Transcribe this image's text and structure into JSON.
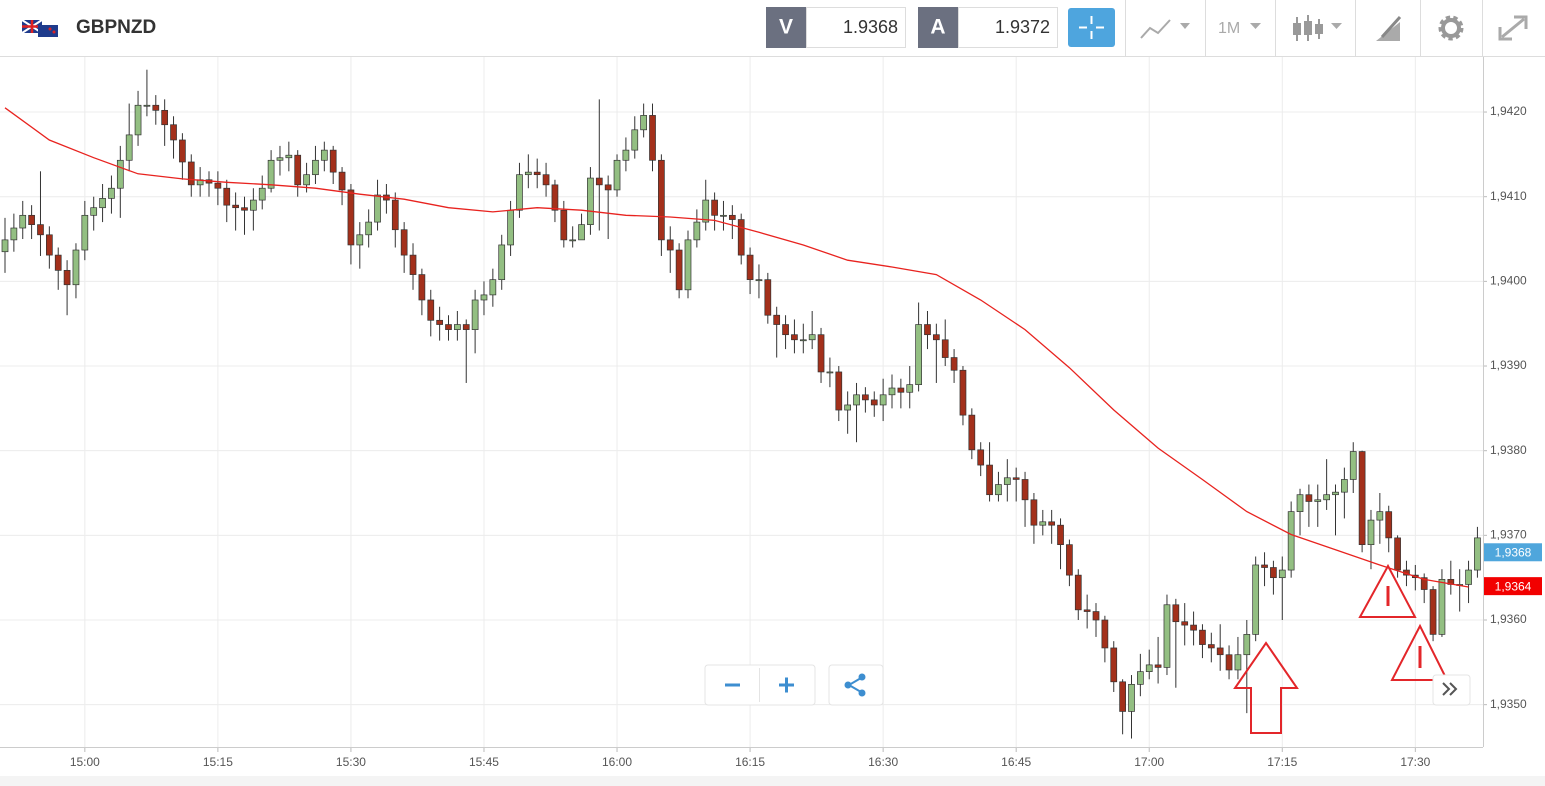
{
  "toolbar": {
    "symbol": "GBPNZD",
    "bid_label": "V",
    "bid": 1.9368,
    "ask_label": "A",
    "ask": 1.9372,
    "timeframe": "1M"
  },
  "chart_data": {
    "type": "candlestick",
    "x": [
      "14:51",
      "14:52",
      "14:53",
      "14:54",
      "14:55",
      "14:56",
      "14:57",
      "14:58",
      "14:59",
      "15:00",
      "15:01",
      "15:02",
      "15:03",
      "15:04",
      "15:05",
      "15:06",
      "15:07",
      "15:08",
      "15:09",
      "15:10",
      "15:11",
      "15:12",
      "15:13",
      "15:14",
      "15:15",
      "15:16",
      "15:17",
      "15:18",
      "15:19",
      "15:20",
      "15:21",
      "15:22",
      "15:23",
      "15:24",
      "15:25",
      "15:26",
      "15:27",
      "15:28",
      "15:29",
      "15:30",
      "15:31",
      "15:32",
      "15:33",
      "15:34",
      "15:35",
      "15:36",
      "15:37",
      "15:38",
      "15:39",
      "15:40",
      "15:41",
      "15:42",
      "15:43",
      "15:44",
      "15:45",
      "15:46",
      "15:47",
      "15:48",
      "15:49",
      "15:50",
      "15:51",
      "15:52",
      "15:53",
      "15:54",
      "15:55",
      "15:56",
      "15:57",
      "15:58",
      "15:59",
      "16:00",
      "16:01",
      "16:02",
      "16:03",
      "16:04",
      "16:05",
      "16:06",
      "16:07",
      "16:08",
      "16:09",
      "16:10",
      "16:11",
      "16:12",
      "16:13",
      "16:14",
      "16:15",
      "16:16",
      "16:17",
      "16:18",
      "16:19",
      "16:20",
      "16:21",
      "16:22",
      "16:23",
      "16:24",
      "16:25",
      "16:26",
      "16:27",
      "16:28",
      "16:29",
      "16:30",
      "16:31",
      "16:32",
      "16:33",
      "16:34",
      "16:35",
      "16:36",
      "16:37",
      "16:38",
      "16:39",
      "16:40",
      "16:41",
      "16:42",
      "16:43",
      "16:44",
      "16:45",
      "16:46",
      "16:47",
      "16:48",
      "16:49",
      "16:50",
      "16:51",
      "16:52",
      "16:53",
      "16:54",
      "16:55",
      "16:56",
      "16:57",
      "16:58",
      "16:59",
      "17:00",
      "17:01",
      "17:02",
      "17:03",
      "17:04",
      "17:05",
      "17:06",
      "17:07",
      "17:08",
      "17:09",
      "17:10",
      "17:11",
      "17:12",
      "17:13",
      "17:14",
      "17:15",
      "17:16",
      "17:17",
      "17:18",
      "17:19",
      "17:20",
      "17:21",
      "17:22",
      "17:23",
      "17:24",
      "17:25",
      "17:26",
      "17:27",
      "17:28",
      "17:29",
      "17:30",
      "17:31",
      "17:32",
      "17:33",
      "17:34",
      "17:35",
      "17:36",
      "17:37"
    ],
    "open": [
      1.94035,
      1.94049,
      1.94063,
      1.94078,
      1.94067,
      1.94055,
      1.94031,
      1.94013,
      1.93996,
      1.94037,
      1.94078,
      1.94087,
      1.94098,
      1.9411,
      1.94143,
      1.94173,
      1.94208,
      1.94208,
      1.94202,
      1.94185,
      1.94167,
      1.94141,
      1.94114,
      1.9412,
      1.94116,
      1.9411,
      1.9409,
      1.94087,
      1.94084,
      1.94096,
      1.9411,
      1.94143,
      1.94146,
      1.94149,
      1.94114,
      1.94126,
      1.94143,
      1.94155,
      1.94129,
      1.94108,
      1.94043,
      1.94055,
      1.9407,
      1.94102,
      1.94096,
      1.94061,
      1.94031,
      1.94008,
      1.93978,
      1.93954,
      1.93949,
      1.93943,
      1.93949,
      1.93943,
      1.93978,
      1.93984,
      1.94002,
      1.94043,
      1.94084,
      1.94126,
      1.94129,
      1.94126,
      1.94114,
      1.94084,
      1.94049,
      1.94049,
      1.94067,
      1.94122,
      1.94114,
      1.94108,
      1.94143,
      1.94155,
      1.94179,
      1.94196,
      1.94143,
      1.94049,
      1.94037,
      1.9399,
      1.94049,
      1.9407,
      1.94096,
      1.94078,
      1.94078,
      1.94073,
      1.94031,
      1.94002,
      1.94002,
      1.9396,
      1.93949,
      1.93937,
      1.93931,
      1.93931,
      1.93937,
      1.93893,
      1.93893,
      1.93848,
      1.93854,
      1.93866,
      1.9386,
      1.93854,
      1.93866,
      1.93874,
      1.93869,
      1.93878,
      1.93949,
      1.93937,
      1.93931,
      1.9391,
      1.93895,
      1.93842,
      1.93801,
      1.93783,
      1.93748,
      1.9376,
      1.93768,
      1.93766,
      1.93742,
      1.93712,
      1.93716,
      1.93712,
      1.93689,
      1.93653,
      1.93612,
      1.9361,
      1.936,
      1.93567,
      1.93527,
      1.93492,
      1.93524,
      1.93539,
      1.93547,
      1.93544,
      1.93618,
      1.93598,
      1.93594,
      1.93588,
      1.93571,
      1.93567,
      1.93559,
      1.93541,
      1.93559,
      1.93583,
      1.93665,
      1.93662,
      1.9365,
      1.93659,
      1.93728,
      1.93748,
      1.9374,
      1.93742,
      1.93748,
      1.93751,
      1.93766,
      1.93799,
      1.93689,
      1.93718,
      1.93728,
      1.93697,
      1.93659,
      1.93653,
      1.9365,
      1.93636,
      1.93583,
      1.93648,
      1.93642,
      1.93642,
      1.93659
    ],
    "high": [
      1.94075,
      1.9408,
      1.94095,
      1.9409,
      1.9413,
      1.94065,
      1.9404,
      1.94025,
      1.94045,
      1.94095,
      1.941,
      1.94115,
      1.94125,
      1.9416,
      1.9421,
      1.94225,
      1.9425,
      1.9422,
      1.94215,
      1.94195,
      1.94175,
      1.9415,
      1.94135,
      1.9413,
      1.9413,
      1.9412,
      1.94105,
      1.941,
      1.9411,
      1.94125,
      1.94155,
      1.9416,
      1.94165,
      1.94155,
      1.9414,
      1.9416,
      1.94165,
      1.9416,
      1.94135,
      1.94115,
      1.9407,
      1.94085,
      1.9412,
      1.94115,
      1.94105,
      1.9407,
      1.94045,
      1.94015,
      1.9399,
      1.9397,
      1.9396,
      1.93965,
      1.93955,
      1.9399,
      1.94,
      1.94015,
      1.94055,
      1.94095,
      1.9414,
      1.9415,
      1.94145,
      1.9414,
      1.9412,
      1.94095,
      1.94065,
      1.9408,
      1.94135,
      1.94215,
      1.94125,
      1.9415,
      1.9417,
      1.94195,
      1.9421,
      1.9421,
      1.9415,
      1.94065,
      1.94045,
      1.9406,
      1.94085,
      1.9412,
      1.94105,
      1.94095,
      1.9409,
      1.9408,
      1.9404,
      1.9402,
      1.9401,
      1.9397,
      1.9396,
      1.93955,
      1.9395,
      1.93965,
      1.93945,
      1.9391,
      1.939,
      1.9387,
      1.9388,
      1.93875,
      1.9387,
      1.93885,
      1.9389,
      1.93885,
      1.939,
      1.93975,
      1.93965,
      1.9395,
      1.93955,
      1.9392,
      1.939,
      1.9385,
      1.9381,
      1.9381,
      1.93775,
      1.9379,
      1.9378,
      1.93775,
      1.9375,
      1.9373,
      1.9373,
      1.9372,
      1.93695,
      1.9366,
      1.9363,
      1.9362,
      1.93605,
      1.93575,
      1.9353,
      1.93535,
      1.9356,
      1.93565,
      1.9358,
      1.9363,
      1.93625,
      1.9362,
      1.9361,
      1.93595,
      1.93585,
      1.93595,
      1.9357,
      1.9358,
      1.936,
      1.93675,
      1.9368,
      1.9367,
      1.93675,
      1.9374,
      1.93755,
      1.9376,
      1.9376,
      1.9379,
      1.9376,
      1.9378,
      1.9381,
      1.938,
      1.9373,
      1.9375,
      1.93735,
      1.937,
      1.9367,
      1.93665,
      1.93655,
      1.9364,
      1.9366,
      1.9367,
      1.9366,
      1.9367,
      1.9371
    ],
    "low": [
      1.9401,
      1.94035,
      1.9405,
      1.9405,
      1.9403,
      1.94015,
      1.9399,
      1.9396,
      1.9398,
      1.94025,
      1.9406,
      1.9407,
      1.9408,
      1.94075,
      1.9413,
      1.9416,
      1.94195,
      1.94185,
      1.9416,
      1.94145,
      1.9412,
      1.941,
      1.941,
      1.941,
      1.9409,
      1.9407,
      1.9406,
      1.94055,
      1.9406,
      1.94085,
      1.94105,
      1.94125,
      1.9413,
      1.941,
      1.94105,
      1.94115,
      1.9413,
      1.94115,
      1.9409,
      1.9402,
      1.94015,
      1.9404,
      1.9406,
      1.9408,
      1.9404,
      1.9401,
      1.9399,
      1.9396,
      1.93935,
      1.9393,
      1.9393,
      1.9393,
      1.9388,
      1.93915,
      1.9396,
      1.9397,
      1.9399,
      1.9403,
      1.94075,
      1.9411,
      1.9411,
      1.941,
      1.9407,
      1.9404,
      1.9404,
      1.9405,
      1.94055,
      1.9406,
      1.9405,
      1.941,
      1.9413,
      1.94145,
      1.9417,
      1.9413,
      1.9403,
      1.9401,
      1.9398,
      1.9398,
      1.9404,
      1.9406,
      1.9406,
      1.9406,
      1.9405,
      1.9402,
      1.93985,
      1.9398,
      1.9395,
      1.9391,
      1.9392,
      1.93915,
      1.93915,
      1.9392,
      1.9388,
      1.93875,
      1.93835,
      1.9382,
      1.9381,
      1.93845,
      1.9384,
      1.93835,
      1.9385,
      1.9385,
      1.9385,
      1.9387,
      1.9392,
      1.9388,
      1.939,
      1.9388,
      1.9383,
      1.9379,
      1.9377,
      1.9374,
      1.9374,
      1.9374,
      1.9374,
      1.9371,
      1.9369,
      1.937,
      1.9369,
      1.9366,
      1.9364,
      1.936,
      1.9359,
      1.9358,
      1.9355,
      1.93515,
      1.93465,
      1.9346,
      1.9351,
      1.9353,
      1.93525,
      1.93535,
      1.9352,
      1.9357,
      1.9357,
      1.93555,
      1.9355,
      1.9354,
      1.9353,
      1.9353,
      1.9349,
      1.93575,
      1.9364,
      1.9363,
      1.936,
      1.9365,
      1.937,
      1.9371,
      1.9371,
      1.9373,
      1.937,
      1.9372,
      1.9375,
      1.9368,
      1.9366,
      1.9369,
      1.9368,
      1.9365,
      1.9364,
      1.93635,
      1.9362,
      1.93575,
      1.9358,
      1.9363,
      1.9361,
      1.9362,
      1.9365
    ],
    "close": [
      1.94049,
      1.94063,
      1.94078,
      1.94067,
      1.94055,
      1.94031,
      1.94013,
      1.93996,
      1.94037,
      1.94078,
      1.94087,
      1.94098,
      1.9411,
      1.94143,
      1.94173,
      1.94208,
      1.94208,
      1.94202,
      1.94185,
      1.94167,
      1.94141,
      1.94114,
      1.9412,
      1.94116,
      1.9411,
      1.9409,
      1.94087,
      1.94084,
      1.94096,
      1.9411,
      1.94143,
      1.94146,
      1.94149,
      1.94114,
      1.94126,
      1.94143,
      1.94155,
      1.94129,
      1.94108,
      1.94043,
      1.94055,
      1.9407,
      1.94102,
      1.94096,
      1.94061,
      1.94031,
      1.94008,
      1.93978,
      1.93954,
      1.93949,
      1.93943,
      1.93949,
      1.93943,
      1.93978,
      1.93984,
      1.94002,
      1.94043,
      1.94084,
      1.94126,
      1.94129,
      1.94126,
      1.94114,
      1.94084,
      1.94049,
      1.94049,
      1.94067,
      1.94122,
      1.94114,
      1.94108,
      1.94143,
      1.94155,
      1.94179,
      1.94196,
      1.94143,
      1.94049,
      1.94037,
      1.9399,
      1.94049,
      1.9407,
      1.94096,
      1.94078,
      1.94078,
      1.94073,
      1.94031,
      1.94002,
      1.94002,
      1.9396,
      1.93949,
      1.93937,
      1.93931,
      1.93931,
      1.93937,
      1.93893,
      1.93893,
      1.93848,
      1.93854,
      1.93866,
      1.9386,
      1.93854,
      1.93866,
      1.93874,
      1.93869,
      1.93878,
      1.93949,
      1.93937,
      1.93931,
      1.9391,
      1.93895,
      1.93842,
      1.93801,
      1.93783,
      1.93748,
      1.9376,
      1.93768,
      1.93766,
      1.93742,
      1.93712,
      1.93716,
      1.93712,
      1.93689,
      1.93653,
      1.93612,
      1.9361,
      1.936,
      1.93567,
      1.93527,
      1.93492,
      1.93524,
      1.93539,
      1.93547,
      1.93544,
      1.93618,
      1.93598,
      1.93594,
      1.93588,
      1.93571,
      1.93567,
      1.93559,
      1.93541,
      1.93559,
      1.93583,
      1.93665,
      1.93662,
      1.9365,
      1.93659,
      1.93728,
      1.93748,
      1.9374,
      1.93742,
      1.93748,
      1.93751,
      1.93766,
      1.93799,
      1.93689,
      1.93718,
      1.93728,
      1.93697,
      1.93659,
      1.93653,
      1.9365,
      1.93636,
      1.93583,
      1.93648,
      1.93642,
      1.93642,
      1.93659,
      1.93697
    ],
    "up_color": "#93bf82",
    "down_color": "#a3301b",
    "overlay": {
      "type": "line",
      "color": "#e8231f",
      "x": [
        "14:51",
        "14:56",
        "15:01",
        "15:06",
        "15:11",
        "15:16",
        "15:21",
        "15:26",
        "15:31",
        "15:36",
        "15:41",
        "15:46",
        "15:51",
        "15:56",
        "16:01",
        "16:06",
        "16:11",
        "16:16",
        "16:21",
        "16:26",
        "16:31",
        "16:36",
        "16:41",
        "16:46",
        "16:51",
        "16:56",
        "17:01",
        "17:06",
        "17:11",
        "17:16",
        "17:21",
        "17:26",
        "17:31",
        "17:36"
      ],
      "values": [
        1.94205,
        1.94167,
        1.94146,
        1.94127,
        1.94121,
        1.94117,
        1.94114,
        1.9411,
        1.94103,
        1.94097,
        1.94087,
        1.94082,
        1.94087,
        1.94084,
        1.94078,
        1.94076,
        1.94072,
        1.94058,
        1.94043,
        1.94025,
        1.94017,
        1.94008,
        1.93978,
        1.93943,
        1.93898,
        1.93848,
        1.93803,
        1.93766,
        1.93728,
        1.93701,
        1.93683,
        1.93665,
        1.93648,
        1.93639
      ]
    },
    "ylim": [
      1.9345,
      1.94265
    ],
    "yticks": [
      {
        "value": 1.935,
        "label": "1,9350"
      },
      {
        "value": 1.936,
        "label": "1,9360"
      },
      {
        "value": 1.937,
        "label": "1,9370"
      },
      {
        "value": 1.938,
        "label": "1,9380"
      },
      {
        "value": 1.939,
        "label": "1,9390"
      },
      {
        "value": 1.94,
        "label": "1,9400"
      },
      {
        "value": 1.941,
        "label": "1,9410"
      },
      {
        "value": 1.942,
        "label": "1,9420"
      }
    ],
    "xticks": [
      "15:00",
      "15:15",
      "15:30",
      "15:45",
      "16:00",
      "16:15",
      "16:30",
      "16:45",
      "17:00",
      "17:15",
      "17:30"
    ],
    "price_tags": [
      {
        "value": 1.9368,
        "label": "1,9368",
        "color": "#4fa6dc"
      },
      {
        "value": 1.9364,
        "label": "1,9364",
        "color": "#f20000"
      }
    ],
    "grid": true
  }
}
